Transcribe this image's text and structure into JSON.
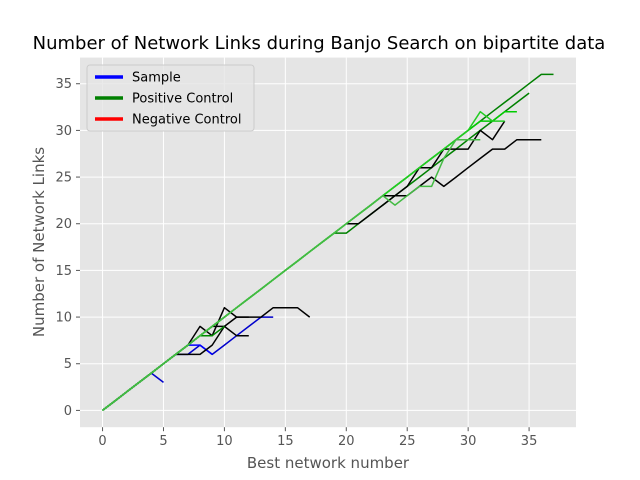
{
  "chart_data": {
    "type": "line",
    "title": "Number of Network Links during Banjo Search on bipartite data",
    "xlabel": "Best network number",
    "ylabel": "Number of Network Links",
    "xlim": [
      -1.85,
      38.85
    ],
    "ylim": [
      -1.8,
      37.8
    ],
    "xticks": [
      0,
      5,
      10,
      15,
      20,
      25,
      30,
      35
    ],
    "yticks": [
      0,
      5,
      10,
      15,
      20,
      25,
      30,
      35
    ],
    "grid": true,
    "legend_position": "top-left",
    "legend": [
      {
        "label": "Sample",
        "color": "#0000ff"
      },
      {
        "label": "Positive Control",
        "color": "#008000"
      },
      {
        "label": "Negative Control",
        "color": "#ff0000"
      }
    ],
    "series": [
      {
        "group": "Sample",
        "color": "#0000cc",
        "x": [
          0,
          1,
          2,
          3,
          4,
          5,
          6,
          7,
          8,
          9,
          10,
          11,
          12,
          13,
          14
        ],
        "y": [
          0,
          1,
          2,
          3,
          4,
          5,
          6,
          6,
          7,
          6,
          7,
          8,
          9,
          10,
          10
        ]
      },
      {
        "group": "Sample",
        "color": "#0000cc",
        "x": [
          0,
          1,
          2,
          3,
          4,
          5
        ],
        "y": [
          0,
          1,
          2,
          3,
          4,
          3
        ]
      },
      {
        "group": "Sample",
        "color": "#0000ff",
        "x": [
          0,
          1,
          2,
          3,
          4,
          5,
          6,
          7,
          8,
          9
        ],
        "y": [
          0,
          1,
          2,
          3,
          4,
          5,
          6,
          7,
          7,
          6
        ]
      },
      {
        "group": "Sample",
        "color": "#000000",
        "x": [
          0,
          1,
          2,
          3,
          4,
          5,
          6,
          7,
          8,
          9,
          10,
          11,
          12
        ],
        "y": [
          0,
          1,
          2,
          3,
          4,
          5,
          6,
          7,
          9,
          8,
          11,
          10,
          10
        ]
      },
      {
        "group": "Sample",
        "color": "#000000",
        "x": [
          0,
          1,
          2,
          3,
          4,
          5,
          6,
          7,
          8,
          9,
          10,
          11,
          12,
          13,
          14,
          15,
          16,
          17
        ],
        "y": [
          0,
          1,
          2,
          3,
          4,
          5,
          6,
          6,
          6,
          7,
          9,
          10,
          10,
          10,
          11,
          11,
          11,
          10
        ]
      },
      {
        "group": "Sample",
        "color": "#000000",
        "x": [
          0,
          1,
          2,
          3,
          4,
          5,
          6,
          7,
          8,
          9,
          10,
          11,
          12
        ],
        "y": [
          0,
          1,
          2,
          3,
          4,
          5,
          6,
          7,
          8,
          9,
          9,
          8,
          8
        ]
      },
      {
        "group": "Sample",
        "color": "#008800",
        "x": [
          0,
          1,
          2,
          3,
          4,
          5,
          6,
          7,
          8,
          9,
          10
        ],
        "y": [
          0,
          1,
          2,
          3,
          4,
          5,
          6,
          7,
          8,
          8,
          9
        ]
      },
      {
        "group": "Positive Control",
        "color": "#008000",
        "x": [
          0,
          1,
          2,
          3,
          4,
          5,
          6,
          7,
          8,
          9,
          10,
          11,
          12,
          13,
          14,
          15,
          16,
          17,
          18,
          19,
          20,
          21,
          22,
          23,
          24,
          25,
          26,
          27,
          28,
          29,
          30,
          31,
          32,
          33,
          34,
          35,
          36,
          37
        ],
        "y": [
          0,
          1,
          2,
          3,
          4,
          5,
          6,
          7,
          8,
          9,
          10,
          11,
          12,
          13,
          14,
          15,
          16,
          17,
          18,
          19,
          20,
          21,
          22,
          23,
          24,
          25,
          26,
          27,
          28,
          29,
          30,
          31,
          32,
          33,
          34,
          35,
          36,
          36
        ]
      },
      {
        "group": "Positive Control",
        "color": "#008000",
        "x": [
          0,
          1,
          2,
          3,
          4,
          5,
          6,
          7,
          8,
          9,
          10,
          11,
          12,
          13,
          14,
          15,
          16,
          17,
          18,
          19,
          20,
          21,
          22,
          23,
          24,
          25,
          26,
          27,
          28,
          29,
          30,
          31,
          32,
          33,
          34,
          35
        ],
        "y": [
          0,
          1,
          2,
          3,
          4,
          5,
          6,
          7,
          8,
          9,
          10,
          11,
          12,
          13,
          14,
          15,
          16,
          17,
          18,
          19,
          19,
          20,
          21,
          22,
          23,
          24,
          25,
          26,
          27,
          28,
          29,
          30,
          31,
          32,
          33,
          34
        ]
      },
      {
        "group": "Positive Control",
        "color": "#000000",
        "x": [
          20,
          21,
          22,
          23,
          24,
          25,
          26,
          27,
          28,
          29,
          30,
          31,
          32,
          33,
          34,
          35,
          36
        ],
        "y": [
          20,
          20,
          21,
          22,
          23,
          23,
          24,
          25,
          24,
          25,
          26,
          27,
          28,
          28,
          29,
          29,
          29
        ]
      },
      {
        "group": "Positive Control",
        "color": "#000000",
        "x": [
          23,
          24,
          25,
          26,
          27,
          28,
          29,
          30,
          31,
          32,
          33
        ],
        "y": [
          23,
          23,
          24,
          26,
          26,
          28,
          28,
          28,
          30,
          29,
          31
        ]
      },
      {
        "group": "Positive Control",
        "color": "#00cc00",
        "x": [
          0,
          1,
          2,
          3,
          4,
          5,
          6,
          7,
          8,
          9,
          10,
          11,
          12,
          13,
          14,
          15,
          16,
          17,
          18,
          19,
          20,
          21,
          22,
          23,
          24,
          25,
          26,
          27,
          28,
          29,
          30,
          31,
          32,
          33,
          34
        ],
        "y": [
          0,
          1,
          2,
          3,
          4,
          5,
          6,
          7,
          8,
          9,
          10,
          11,
          12,
          13,
          14,
          15,
          16,
          17,
          18,
          19,
          20,
          21,
          22,
          23,
          24,
          25,
          26,
          27,
          28,
          29,
          30,
          31,
          31,
          32,
          32
        ]
      },
      {
        "group": "Positive Control",
        "color": "#22cc22",
        "x": [
          0,
          1,
          2,
          3,
          4,
          5,
          6,
          7,
          8,
          9,
          10,
          11,
          12,
          13,
          14,
          15,
          16,
          17,
          18,
          19,
          20,
          21,
          22,
          23,
          24,
          25,
          26,
          27,
          28,
          29,
          30,
          31,
          32,
          33
        ],
        "y": [
          0,
          1,
          2,
          3,
          4,
          5,
          6,
          7,
          8,
          9,
          10,
          11,
          12,
          13,
          14,
          15,
          16,
          17,
          18,
          19,
          20,
          21,
          22,
          23,
          24,
          25,
          26,
          27,
          28,
          29,
          30,
          32,
          31,
          31
        ]
      },
      {
        "group": "Positive Control",
        "color": "#44bb44",
        "x": [
          0,
          1,
          2,
          3,
          4,
          5,
          6,
          7,
          8,
          9,
          10,
          11,
          12,
          13,
          14,
          15,
          16,
          17,
          18,
          19,
          20,
          21,
          22,
          23,
          24,
          25,
          26,
          27,
          28,
          29,
          30,
          31
        ],
        "y": [
          0,
          1,
          2,
          3,
          4,
          5,
          6,
          7,
          8,
          9,
          10,
          11,
          12,
          13,
          14,
          15,
          16,
          17,
          18,
          19,
          20,
          21,
          22,
          23,
          22,
          23,
          24,
          24,
          27,
          29,
          29,
          29
        ]
      }
    ]
  }
}
